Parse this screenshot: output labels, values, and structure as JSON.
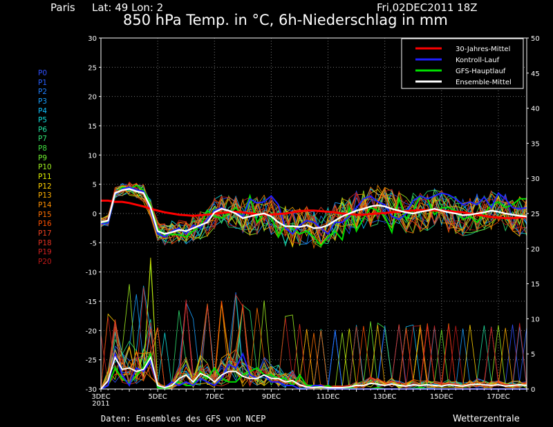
{
  "header": {
    "city": "Paris",
    "coords": "Lat: 49 Lon: 2",
    "datetime": "Fri,02DEC2011 18Z",
    "title": "850 hPa Temp. in °C, 6h-Niederschlag in mm"
  },
  "footer": {
    "credit": "Daten: Ensembles des GFS von NCEP",
    "brand": "Wetterzentrale"
  },
  "members": {
    "labels": [
      "P0",
      "P1",
      "P2",
      "P3",
      "P4",
      "P5",
      "P6",
      "P7",
      "P8",
      "P9",
      "P10",
      "P11",
      "P12",
      "P13",
      "P14",
      "P15",
      "P16",
      "P17",
      "P18",
      "P19",
      "P20"
    ],
    "colors": [
      "#3050ff",
      "#2860ff",
      "#2080ff",
      "#18a0ff",
      "#10c0ff",
      "#10e0e0",
      "#20e0a0",
      "#30e070",
      "#40e040",
      "#70f030",
      "#a0f020",
      "#e0f000",
      "#ffd000",
      "#ffb000",
      "#ff9000",
      "#ff7000",
      "#ff5000",
      "#f04020",
      "#e03020",
      "#d02020",
      "#c01818"
    ]
  },
  "chart_data": {
    "type": "line",
    "x_start": "3DEC 2011",
    "x_step_hours": 6,
    "x_end": "18DEC 2011",
    "x_tick_labels": [
      "3DEC\n2011",
      "5DEC",
      "7DEC",
      "9DEC",
      "11DEC",
      "13DEC",
      "15DEC",
      "17DEC"
    ],
    "left_axis": {
      "label": "850 hPa Temp. in °C",
      "ylim": [
        -30,
        30
      ],
      "ticks": [
        30,
        25,
        20,
        15,
        10,
        5,
        0,
        -5,
        -10,
        -15,
        -20,
        -25,
        -30
      ]
    },
    "right_axis": {
      "label": "6h-Niederschlag in mm",
      "ylim": [
        0,
        50
      ],
      "ticks": [
        50,
        45,
        40,
        35,
        30,
        25,
        20,
        15,
        10,
        5,
        0
      ]
    },
    "grid": true,
    "legend": {
      "placement": "top-right",
      "entries": [
        {
          "name": "30-Jahres-Mittel",
          "color": "#ff0000"
        },
        {
          "name": "Kontroll-Lauf",
          "color": "#2020ff"
        },
        {
          "name": "GFS-Hauptlauf",
          "color": "#00e000"
        },
        {
          "name": "Ensemble-Mittel",
          "color": "#ffffff"
        }
      ]
    },
    "series_temp": [
      {
        "name": "30-Jahres-Mittel",
        "color": "#ff0000",
        "values": [
          2.2,
          2.2,
          2,
          2,
          1.8,
          1.5,
          1.2,
          0.8,
          0.5,
          0.2,
          0,
          -0.2,
          -0.3,
          -0.4,
          -0.3,
          -0.2,
          0,
          0.1,
          0.2,
          0.3,
          0.2,
          0,
          -0.1,
          -0.2,
          -0.2,
          -0.1,
          0,
          0.2,
          0.4,
          0.5,
          0.5,
          0.4,
          0.3,
          0.2,
          0,
          -0.1,
          -0.2,
          -0.2,
          -0.1,
          0,
          0.1,
          0.2,
          0.3,
          0.4,
          0.5,
          0.6,
          0.6,
          0.5,
          0.5,
          0.4,
          0.3,
          0.2,
          0,
          -0.2,
          -0.4,
          -0.6,
          -0.7,
          -0.8,
          -0.8,
          -0.7,
          -0.6
        ]
      },
      {
        "name": "Ensemble-Mittel",
        "color": "#ffffff",
        "values": [
          -1.5,
          -1.2,
          3.5,
          4,
          4.2,
          3.8,
          3.5,
          1,
          -3,
          -3.5,
          -3.2,
          -2.8,
          -3,
          -2.5,
          -2,
          -1.5,
          0.2,
          0.8,
          0.5,
          0,
          -0.8,
          -0.5,
          -0.2,
          0,
          -0.5,
          -1.5,
          -2.2,
          -2.2,
          -2.3,
          -2,
          -2.5,
          -2.4,
          -2,
          -1.2,
          -0.5,
          0,
          0.5,
          0.8,
          1.2,
          1.4,
          1.2,
          0.8,
          0.5,
          0.2,
          0,
          0.3,
          0.5,
          0.8,
          0.5,
          0.2,
          0,
          -0.3,
          -0.2,
          0,
          0.2,
          0.5,
          0.3,
          0,
          -0.2,
          -0.4,
          -0.5
        ]
      },
      {
        "name": "GFS-Hauptlauf",
        "color": "#00e000",
        "values": [
          -1.8,
          -1.4,
          3,
          4.5,
          4.2,
          4.8,
          4,
          1.5,
          -2.5,
          -3.8,
          -3.5,
          -3.6,
          -4,
          -3,
          -2.2,
          0.5,
          -0.5,
          -0.8,
          0,
          1,
          -0.5,
          3,
          -1.5,
          0,
          -0.5,
          -4,
          -2,
          -2.5,
          -3.5,
          -3,
          -4,
          -5.5,
          -4,
          -3,
          -4.5,
          1,
          -3,
          -0.8,
          1,
          0.5,
          -0.5,
          -3.2,
          2.5,
          -1,
          0.5,
          3,
          2.5,
          -0.2,
          1,
          1,
          0.5,
          -1,
          -0.5,
          -1.5,
          0,
          1.5,
          2,
          1,
          1.5,
          2.5,
          2.5
        ]
      },
      {
        "name": "Kontroll-Lauf",
        "color": "#2020ff",
        "values": [
          -1.8,
          -1.6,
          3.2,
          4.2,
          4.5,
          4,
          3.8,
          0.5,
          -3.5,
          -4,
          -3,
          -2.5,
          -3.5,
          -2,
          -2.5,
          -1,
          0.5,
          1,
          0.5,
          0.2,
          -0.5,
          2.5,
          1.8,
          2,
          3,
          1.5,
          -2.5,
          -3.5,
          -2,
          -1.2,
          -1.5,
          -2.5,
          -3.5,
          -1.5,
          -1.5,
          -0.5,
          1,
          2.5,
          3,
          2,
          1.5,
          -0.5,
          -1,
          0,
          2.2,
          3,
          2.5,
          3,
          3.5,
          3.2,
          2.5,
          1.5,
          2,
          1.5,
          2.8,
          1,
          3.5,
          2.5,
          1,
          0.8,
          1
        ]
      }
    ],
    "series_precip": [
      {
        "name": "Ensemble-Mittel",
        "color": "#ffffff",
        "values": [
          0,
          1.2,
          4.5,
          2.8,
          3,
          2.5,
          2.8,
          4.5,
          0.5,
          0.2,
          0.5,
          1.5,
          2,
          1,
          2.2,
          1.8,
          1,
          2,
          2.5,
          2.5,
          1.8,
          1.5,
          1.5,
          2,
          1.5,
          1.5,
          1,
          1.2,
          0.6,
          0.3,
          0.2,
          0.3,
          0.2,
          0.2,
          0.2,
          0.3,
          0.5,
          0.5,
          0.8,
          0.7,
          0.5,
          0.7,
          0.5,
          0.4,
          0.6,
          0.5,
          0.6,
          0.5,
          0.4,
          0.6,
          0.5,
          0.4,
          0.6,
          0.7,
          0.6,
          0.5,
          0.6,
          0.4,
          0.5,
          0.6,
          0.5
        ]
      },
      {
        "name": "GFS-Hauptlauf",
        "color": "#00e000",
        "values": [
          0,
          0.5,
          3,
          1.5,
          0.8,
          2,
          3,
          5,
          0.2,
          0,
          0.5,
          1,
          0.5,
          0.5,
          2.5,
          1.5,
          3,
          1.5,
          1,
          1,
          2,
          2.5,
          3,
          2,
          2,
          1.5,
          1.5,
          0.5,
          2,
          0.5,
          0.5,
          0.2,
          0.5,
          0,
          0,
          0.2,
          0,
          0,
          0,
          0.2,
          0,
          0,
          0,
          0,
          0,
          0.2,
          0,
          0,
          0,
          0,
          0,
          0,
          0,
          0,
          0,
          0,
          0,
          0,
          0,
          0,
          0
        ]
      },
      {
        "name": "Kontroll-Lauf",
        "color": "#2020ff",
        "values": [
          0,
          0.5,
          5,
          2,
          0.5,
          3,
          2.5,
          4,
          0.5,
          0.2,
          1,
          0.5,
          1,
          0.5,
          1.5,
          1,
          0.5,
          1.5,
          3.5,
          3,
          5,
          2,
          1.5,
          2,
          1,
          1,
          0.5,
          0.5,
          0,
          0,
          0.5,
          0.5,
          0,
          0,
          0,
          0,
          0,
          0,
          0,
          0,
          0,
          0,
          0,
          0,
          0,
          0,
          0,
          0,
          0,
          0,
          0,
          0,
          0,
          0,
          0,
          0,
          0,
          0,
          0,
          0,
          0
        ]
      }
    ]
  }
}
